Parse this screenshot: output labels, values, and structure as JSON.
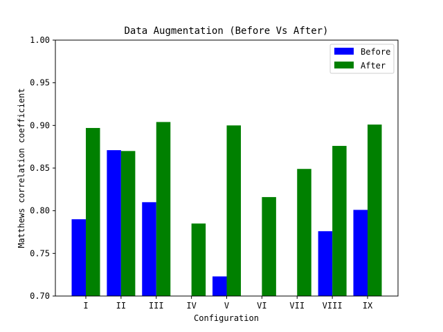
{
  "chart_data": {
    "type": "bar",
    "title": "Data Augmentation (Before Vs After)",
    "xlabel": "Configuration",
    "ylabel": "Matthews correlation coefficient",
    "categories": [
      "I",
      "II",
      "III",
      "IV",
      "V",
      "VI",
      "VII",
      "VIII",
      "IX"
    ],
    "series": [
      {
        "name": "Before",
        "color": "#0000ff",
        "values": [
          0.79,
          0.871,
          0.81,
          null,
          0.723,
          null,
          null,
          0.776,
          0.801
        ]
      },
      {
        "name": "After",
        "color": "#008000",
        "values": [
          0.897,
          0.87,
          0.904,
          0.785,
          0.9,
          0.816,
          0.849,
          0.876,
          0.901
        ]
      }
    ],
    "ylim": [
      0.7,
      1.0
    ],
    "yticks": [
      "0.70",
      "0.75",
      "0.80",
      "0.85",
      "0.90",
      "0.95",
      "1.00"
    ],
    "grid": false,
    "legend_position": "top-right"
  }
}
